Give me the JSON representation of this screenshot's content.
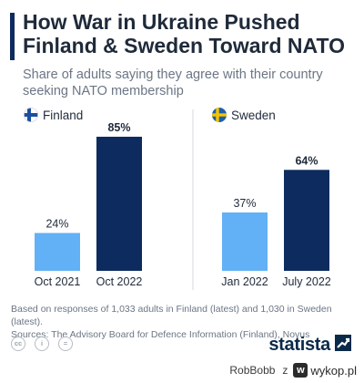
{
  "title": "How War in Ukraine Pushed Finland & Sweden Toward NATO",
  "subtitle": "Share of adults saying they agree with their country seeking NATO membership",
  "colors": {
    "accent": "#0d2b5e",
    "light_bar": "#62b0f5",
    "dark_bar": "#0d2b5e"
  },
  "chart_data": [
    {
      "type": "bar",
      "panel": "Finland",
      "flag_icon": "finland-flag-icon",
      "categories": [
        "Oct 2021",
        "Oct 2022"
      ],
      "values": [
        24,
        85
      ],
      "value_labels": [
        "24%",
        "85%"
      ],
      "ylim": [
        0,
        100
      ]
    },
    {
      "type": "bar",
      "panel": "Sweden",
      "flag_icon": "sweden-flag-icon",
      "categories": [
        "Jan 2022",
        "July 2022"
      ],
      "values": [
        37,
        64
      ],
      "value_labels": [
        "37%",
        "64%"
      ],
      "ylim": [
        0,
        100
      ]
    }
  ],
  "footnote": {
    "line1": "Based on responses of 1,033 adults in Finland (latest) and 1,030 in Sweden (latest).",
    "line2": "Sources: The Advisory Board for Defence Information (Finland), Novus"
  },
  "license_icons": [
    "cc-icon",
    "by-icon",
    "nd-icon"
  ],
  "brand": "statista",
  "watermark": {
    "user": "RobBobb",
    "suffix": "z",
    "site": "wykop.pl"
  }
}
